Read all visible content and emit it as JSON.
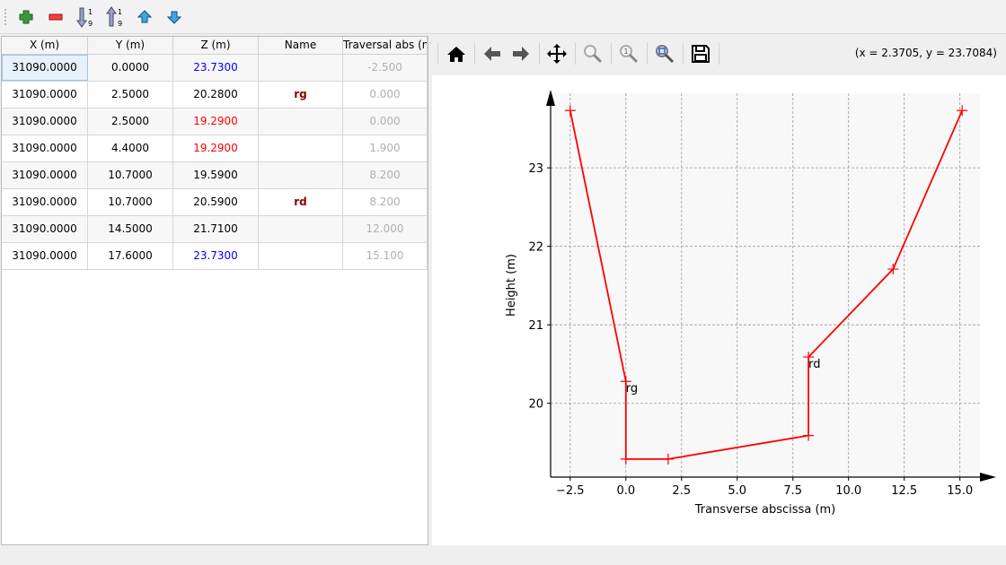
{
  "toolbar": {
    "buttons": [
      {
        "name": "add-row-button",
        "icon": "plus-icon"
      },
      {
        "name": "remove-row-button",
        "icon": "minus-icon"
      },
      {
        "name": "sort-ascending-button",
        "icon": "sort-ascending-icon"
      },
      {
        "name": "sort-descending-button",
        "icon": "sort-descending-icon"
      },
      {
        "name": "move-up-button",
        "icon": "arrow-up-icon"
      },
      {
        "name": "move-down-button",
        "icon": "arrow-down-icon"
      }
    ]
  },
  "table": {
    "headers": [
      "X (m)",
      "Y (m)",
      "Z (m)",
      "Name",
      "Traversal abs (m"
    ],
    "rows": [
      {
        "x": "31090.0000",
        "y": "0.0000",
        "z": "23.7300",
        "z_color": "#0000ff",
        "name": "",
        "trav": "-2.500"
      },
      {
        "x": "31090.0000",
        "y": "2.5000",
        "z": "20.2800",
        "z_color": "#000000",
        "name": "rg",
        "trav": "0.000"
      },
      {
        "x": "31090.0000",
        "y": "2.5000",
        "z": "19.2900",
        "z_color": "#ff0000",
        "name": "",
        "trav": "0.000"
      },
      {
        "x": "31090.0000",
        "y": "4.4000",
        "z": "19.2900",
        "z_color": "#ff0000",
        "name": "",
        "trav": "1.900"
      },
      {
        "x": "31090.0000",
        "y": "10.7000",
        "z": "19.5900",
        "z_color": "#000000",
        "name": "",
        "trav": "8.200"
      },
      {
        "x": "31090.0000",
        "y": "10.7000",
        "z": "20.5900",
        "z_color": "#000000",
        "name": "rd",
        "trav": "8.200"
      },
      {
        "x": "31090.0000",
        "y": "14.5000",
        "z": "21.7100",
        "z_color": "#000000",
        "name": "",
        "trav": "12.000"
      },
      {
        "x": "31090.0000",
        "y": "17.6000",
        "z": "23.7300",
        "z_color": "#0000ff",
        "name": "",
        "trav": "15.100"
      }
    ]
  },
  "plot_toolbar": {
    "buttons": [
      "home-icon",
      "back-icon",
      "forward-icon",
      "pan-icon",
      "zoom-icon",
      "zoom-1-icon",
      "zoom-fit-icon",
      "save-icon"
    ],
    "coords": "(x = 2.3705,   y = 23.7084)"
  },
  "chart_data": {
    "type": "line",
    "xlabel": "Transverse abscissa (m)",
    "ylabel": "Height (m)",
    "x": [
      -2.5,
      0,
      0,
      1.9,
      8.2,
      8.2,
      12,
      15.1
    ],
    "y": [
      23.73,
      20.28,
      19.29,
      19.29,
      19.59,
      20.59,
      21.71,
      23.73
    ],
    "point_labels": [
      {
        "text": "rg",
        "x": 0,
        "y": 20.28
      },
      {
        "text": "rd",
        "x": 8.2,
        "y": 20.59
      }
    ],
    "xticks": [
      "−2.5",
      "0.0",
      "2.5",
      "5.0",
      "7.5",
      "10.0",
      "12.5",
      "15.0"
    ],
    "xtick_values": [
      -2.5,
      0,
      2.5,
      5,
      7.5,
      10,
      12.5,
      15
    ],
    "yticks": [
      "20",
      "21",
      "22",
      "23"
    ],
    "ytick_values": [
      20,
      21,
      22,
      23
    ],
    "xlim": [
      -3.38,
      15.9
    ],
    "ylim": [
      19.06,
      23.95
    ],
    "grid": true,
    "line_color": "#ff0000",
    "marker": "+"
  }
}
